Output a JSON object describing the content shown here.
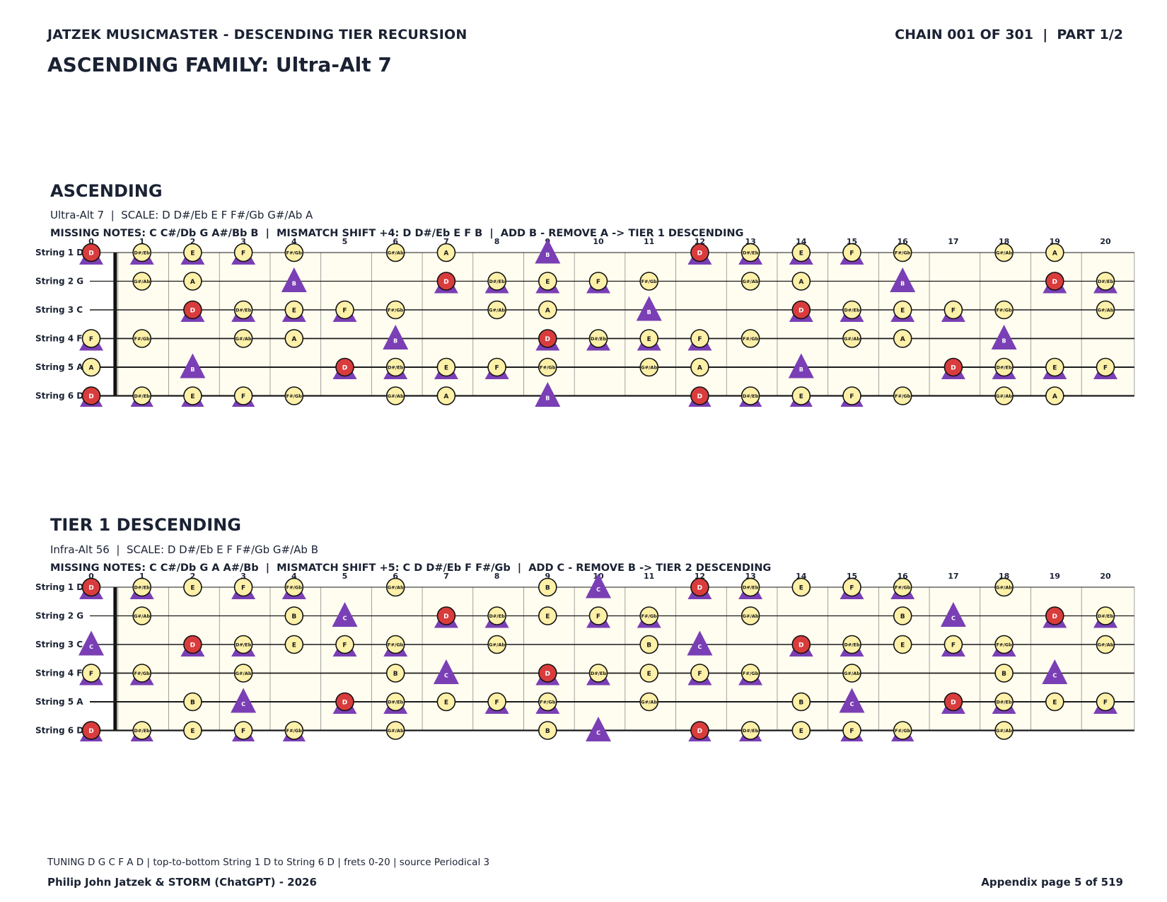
{
  "header": {
    "left": "JATZEK MUSICMASTER - DESCENDING TIER RECURSION",
    "right": "CHAIN 001 OF 301  |  PART 1/2",
    "family": "ASCENDING FAMILY: Ultra-Alt 7"
  },
  "colors": {
    "background": "#fffdf0",
    "note": "#fdf0a8",
    "root": "#d93c3c",
    "missing": "#7a3fb5",
    "text": "#1a2233"
  },
  "fret_numbers": [
    "0",
    "1",
    "2",
    "3",
    "4",
    "5",
    "6",
    "7",
    "8",
    "9",
    "10",
    "11",
    "12",
    "13",
    "14",
    "15",
    "16",
    "17",
    "18",
    "19",
    "20"
  ],
  "string_labels": [
    "String 1 D",
    "String 2 G",
    "String 3 C",
    "String 4 F",
    "String 5 A",
    "String 6 D"
  ],
  "sections": [
    {
      "title": "ASCENDING",
      "scale_line": "Ultra-Alt 7  |  SCALE: D D#/Eb E F F#/Gb G#/Ab A",
      "missing_line": "MISSING NOTES: C C#/Db G A#/Bb B  |  MISMATCH SHIFT +4: D D#/Eb E F B  |  ADD B - REMOVE A -> TIER 1 DESCENDING",
      "root": "D",
      "scale": [
        "D",
        "D#/Eb",
        "E",
        "F",
        "F#/Gb",
        "G#/Ab",
        "A"
      ],
      "triangles": [
        "D",
        "D#/Eb",
        "E",
        "F",
        "B"
      ],
      "added": "B"
    },
    {
      "title": "TIER 1 DESCENDING",
      "scale_line": "Infra-Alt 56  |  SCALE: D D#/Eb E F F#/Gb G#/Ab B",
      "missing_line": "MISSING NOTES: C C#/Db G A A#/Bb  |  MISMATCH SHIFT +5: C D D#/Eb F F#/Gb  |  ADD C - REMOVE B -> TIER 2 DESCENDING",
      "root": "D",
      "scale": [
        "D",
        "D#/Eb",
        "E",
        "F",
        "F#/Gb",
        "G#/Ab",
        "B"
      ],
      "triangles": [
        "C",
        "D",
        "D#/Eb",
        "F",
        "F#/Gb"
      ],
      "added": "C"
    }
  ],
  "footer": {
    "tuning": "TUNING D G C F A D | top-to-bottom String 1 D to String 6 D | frets 0-20 | source Periodical 3",
    "authors": "Philip John Jatzek & STORM (ChatGPT) - 2026",
    "page": "Appendix page 5 of 519"
  }
}
